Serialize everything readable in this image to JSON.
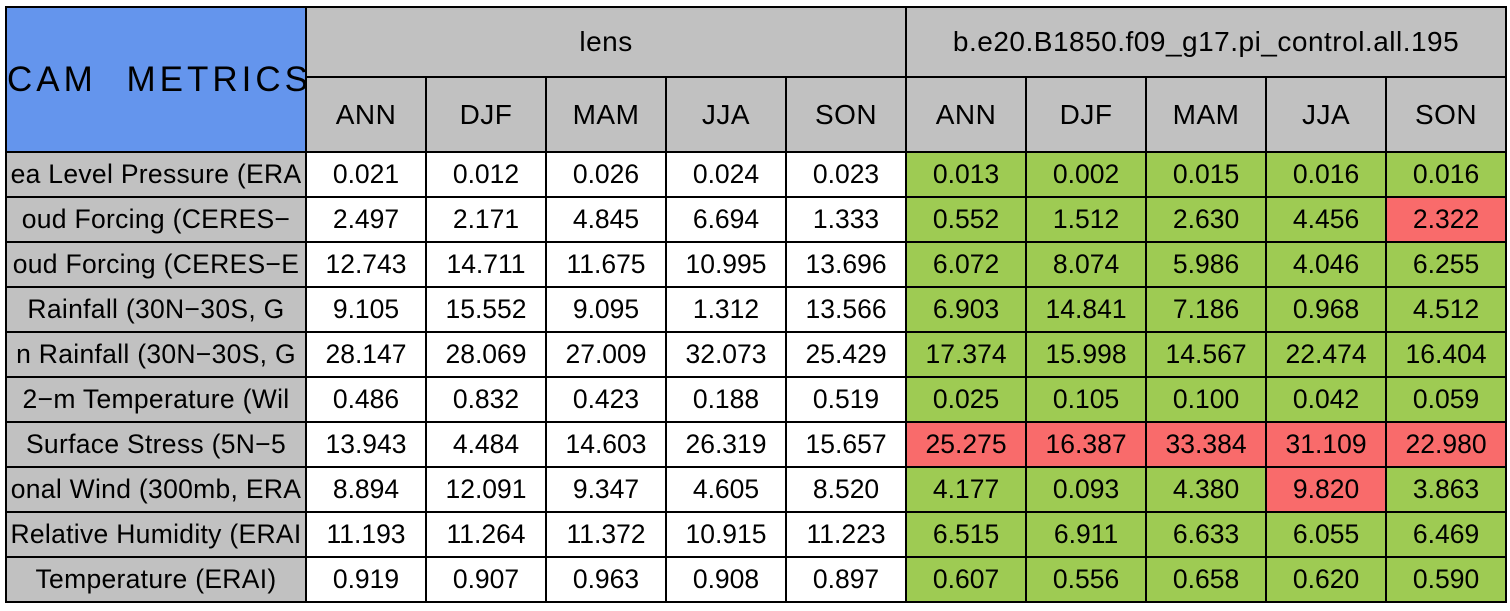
{
  "chart_data": {
    "type": "table",
    "title": "CAM METRICS",
    "column_groups": [
      {
        "label": "lens"
      },
      {
        "label": "b.e20.B1850.f09_g17.pi_control.all.195"
      }
    ],
    "seasons": [
      "ANN",
      "DJF",
      "MAM",
      "JJA",
      "SON"
    ],
    "colors": {
      "title_bg": "#6495ED",
      "header_bg": "#C1C1C1",
      "good": "#9ECB53",
      "bad": "#F96B6B"
    },
    "rows": [
      {
        "label": "ea Level Pressure (ERA",
        "lens": [
          "0.021",
          "0.012",
          "0.026",
          "0.024",
          "0.023"
        ],
        "control": [
          "0.013",
          "0.002",
          "0.015",
          "0.016",
          "0.016"
        ],
        "control_status": [
          "good",
          "good",
          "good",
          "good",
          "good"
        ]
      },
      {
        "label": "oud Forcing (CERES−",
        "lens": [
          "2.497",
          "2.171",
          "4.845",
          "6.694",
          "1.333"
        ],
        "control": [
          "0.552",
          "1.512",
          "2.630",
          "4.456",
          "2.322"
        ],
        "control_status": [
          "good",
          "good",
          "good",
          "good",
          "bad"
        ]
      },
      {
        "label": "oud Forcing (CERES−E",
        "lens": [
          "12.743",
          "14.711",
          "11.675",
          "10.995",
          "13.696"
        ],
        "control": [
          "6.072",
          "8.074",
          "5.986",
          "4.046",
          "6.255"
        ],
        "control_status": [
          "good",
          "good",
          "good",
          "good",
          "good"
        ]
      },
      {
        "label": "Rainfall (30N−30S, G",
        "lens": [
          "9.105",
          "15.552",
          "9.095",
          "1.312",
          "13.566"
        ],
        "control": [
          "6.903",
          "14.841",
          "7.186",
          "0.968",
          "4.512"
        ],
        "control_status": [
          "good",
          "good",
          "good",
          "good",
          "good"
        ]
      },
      {
        "label": "n Rainfall (30N−30S, G",
        "lens": [
          "28.147",
          "28.069",
          "27.009",
          "32.073",
          "25.429"
        ],
        "control": [
          "17.374",
          "15.998",
          "14.567",
          "22.474",
          "16.404"
        ],
        "control_status": [
          "good",
          "good",
          "good",
          "good",
          "good"
        ]
      },
      {
        "label": "2−m Temperature (Wil",
        "lens": [
          "0.486",
          "0.832",
          "0.423",
          "0.188",
          "0.519"
        ],
        "control": [
          "0.025",
          "0.105",
          "0.100",
          "0.042",
          "0.059"
        ],
        "control_status": [
          "good",
          "good",
          "good",
          "good",
          "good"
        ]
      },
      {
        "label": "Surface Stress (5N−5",
        "lens": [
          "13.943",
          "4.484",
          "14.603",
          "26.319",
          "15.657"
        ],
        "control": [
          "25.275",
          "16.387",
          "33.384",
          "31.109",
          "22.980"
        ],
        "control_status": [
          "bad",
          "bad",
          "bad",
          "bad",
          "bad"
        ]
      },
      {
        "label": "onal Wind (300mb, ERA",
        "lens": [
          "8.894",
          "12.091",
          "9.347",
          "4.605",
          "8.520"
        ],
        "control": [
          "4.177",
          "0.093",
          "4.380",
          "9.820",
          "3.863"
        ],
        "control_status": [
          "good",
          "good",
          "good",
          "bad",
          "good"
        ]
      },
      {
        "label": "Relative Humidity (ERAI",
        "lens": [
          "11.193",
          "11.264",
          "11.372",
          "10.915",
          "11.223"
        ],
        "control": [
          "6.515",
          "6.911",
          "6.633",
          "6.055",
          "6.469"
        ],
        "control_status": [
          "good",
          "good",
          "good",
          "good",
          "good"
        ]
      },
      {
        "label": "Temperature (ERAI)",
        "lens": [
          "0.919",
          "0.907",
          "0.963",
          "0.908",
          "0.897"
        ],
        "control": [
          "0.607",
          "0.556",
          "0.658",
          "0.620",
          "0.590"
        ],
        "control_status": [
          "good",
          "good",
          "good",
          "good",
          "good"
        ]
      }
    ]
  }
}
